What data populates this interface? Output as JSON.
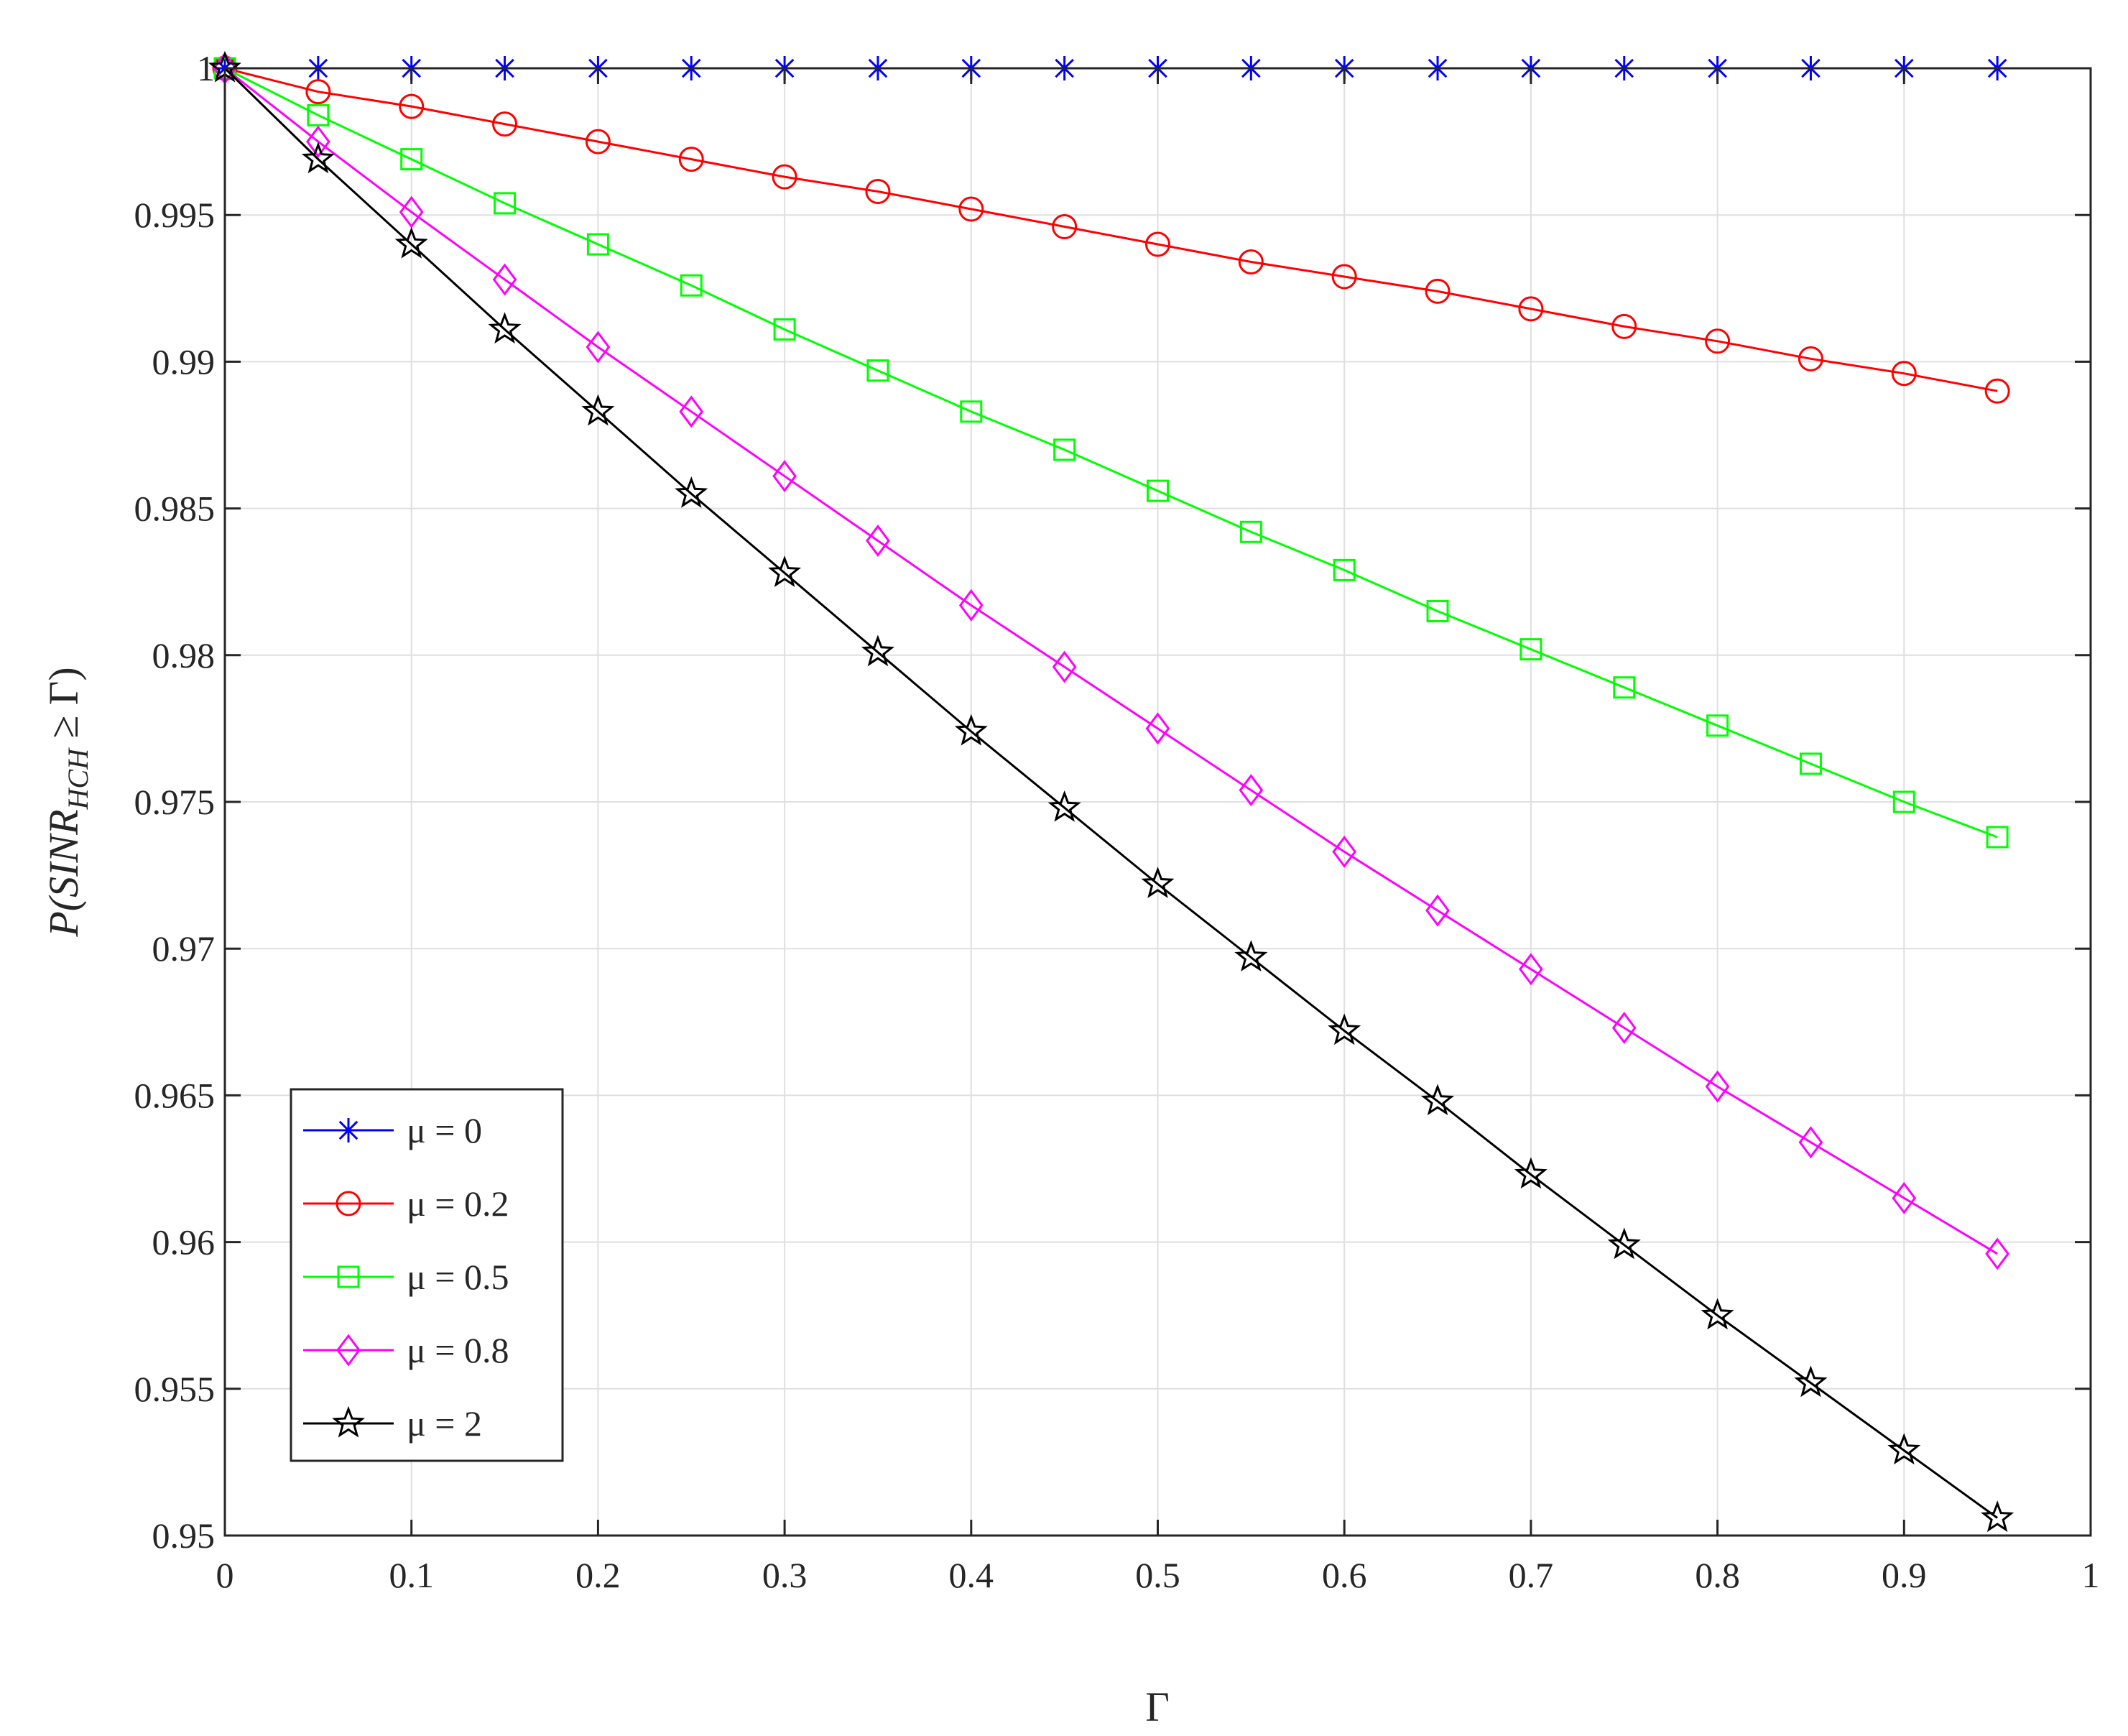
{
  "chart_data": {
    "type": "line",
    "title": "",
    "xlabel": "Γ",
    "ylabel": "P(SINR_HCH ≥ Γ)",
    "ylabel_parts": {
      "pre": "P(SINR",
      "sub": "HCH",
      "post": " ≥ Γ)"
    },
    "xlim": [
      0,
      1
    ],
    "ylim": [
      0.95,
      1
    ],
    "grid": true,
    "legend_position": "bottom-left",
    "xticks": [
      0,
      0.1,
      0.2,
      0.3,
      0.4,
      0.5,
      0.6,
      0.7,
      0.8,
      0.9,
      1
    ],
    "xtick_labels": [
      "0",
      "0.1",
      "0.2",
      "0.3",
      "0.4",
      "0.5",
      "0.6",
      "0.7",
      "0.8",
      "0.9",
      "1"
    ],
    "yticks": [
      0.95,
      0.955,
      0.96,
      0.965,
      0.97,
      0.975,
      0.98,
      0.985,
      0.99,
      0.995,
      1
    ],
    "ytick_labels": [
      "0.95",
      "0.955",
      "0.96",
      "0.965",
      "0.97",
      "0.975",
      "0.98",
      "0.985",
      "0.99",
      "0.995",
      "1"
    ],
    "x": [
      0,
      0.05,
      0.1,
      0.15,
      0.2,
      0.25,
      0.3,
      0.35,
      0.4,
      0.45,
      0.5,
      0.55,
      0.6,
      0.65,
      0.7,
      0.75,
      0.8,
      0.85,
      0.9,
      0.95
    ],
    "series": [
      {
        "name": "μ = 0",
        "color": "#0000ff",
        "marker": "asterisk",
        "values": [
          1,
          1,
          1,
          1,
          1,
          1,
          1,
          1,
          1,
          1,
          1,
          1,
          1,
          1,
          1,
          1,
          1,
          1,
          1,
          1
        ]
      },
      {
        "name": "μ = 0.2",
        "color": "#ff0000",
        "marker": "circle",
        "values": [
          1,
          0.9992,
          0.9987,
          0.9981,
          0.9975,
          0.9969,
          0.9963,
          0.9958,
          0.9952,
          0.9946,
          0.994,
          0.9934,
          0.9929,
          0.9924,
          0.9918,
          0.9912,
          0.9907,
          0.9901,
          0.9896,
          0.989
        ]
      },
      {
        "name": "μ = 0.5",
        "color": "#00ff00",
        "marker": "square",
        "values": [
          1,
          0.9984,
          0.9969,
          0.9954,
          0.994,
          0.9926,
          0.9911,
          0.9897,
          0.9883,
          0.987,
          0.9856,
          0.9842,
          0.9829,
          0.9815,
          0.9802,
          0.9789,
          0.9776,
          0.9763,
          0.975,
          0.9738
        ]
      },
      {
        "name": "μ = 0.8",
        "color": "#ff00ff",
        "marker": "diamond",
        "values": [
          1,
          0.9975,
          0.9951,
          0.9928,
          0.9905,
          0.9883,
          0.9861,
          0.9839,
          0.9817,
          0.9796,
          0.9775,
          0.9754,
          0.9733,
          0.9713,
          0.9693,
          0.9673,
          0.9653,
          0.9634,
          0.9615,
          0.9596
        ]
      },
      {
        "name": "μ = 2",
        "color": "#000000",
        "marker": "star",
        "values": [
          1,
          0.9969,
          0.994,
          0.9911,
          0.9883,
          0.9855,
          0.9828,
          0.9801,
          0.9774,
          0.9748,
          0.9722,
          0.9697,
          0.9672,
          0.9648,
          0.9623,
          0.9599,
          0.9575,
          0.9552,
          0.9529,
          0.9506
        ]
      }
    ]
  }
}
